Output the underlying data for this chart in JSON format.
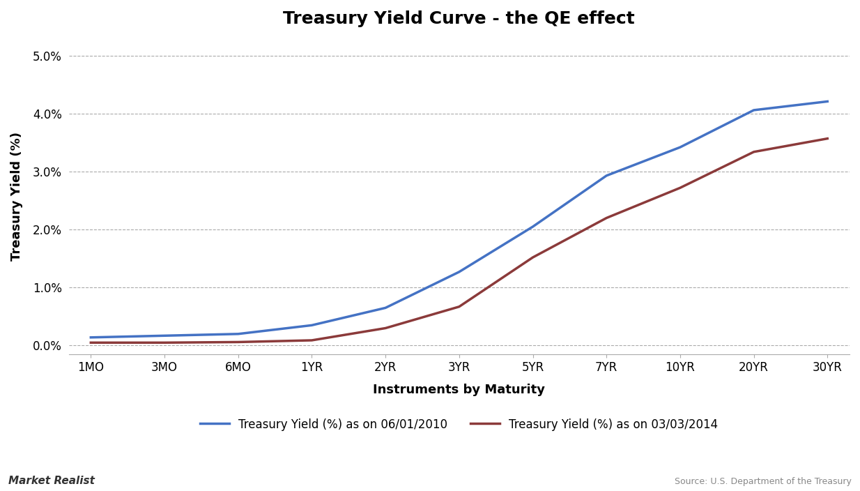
{
  "title": "Treasury Yield Curve - the QE effect",
  "xlabel": "Instruments by Maturity",
  "ylabel": "Treasury Yield (%)",
  "categories": [
    "1MO",
    "3MO",
    "6MO",
    "1YR",
    "2YR",
    "3YR",
    "5YR",
    "7YR",
    "10YR",
    "20YR",
    "30YR"
  ],
  "series_2010": [
    0.14,
    0.17,
    0.2,
    0.35,
    0.65,
    1.27,
    2.05,
    2.93,
    3.42,
    4.06,
    4.21
  ],
  "series_2014": [
    0.05,
    0.05,
    0.06,
    0.09,
    0.3,
    0.67,
    1.52,
    2.2,
    2.72,
    3.34,
    3.57
  ],
  "color_2010": "#4472C4",
  "color_2014": "#8B3A3A",
  "legend_2010": "Treasury Yield (%) as on 06/01/2010",
  "legend_2014": "Treasury Yield (%) as on 03/03/2014",
  "ytick_vals": [
    0.0,
    1.0,
    2.0,
    3.0,
    4.0,
    5.0
  ],
  "ytick_labels": [
    "0.0%",
    "1.0%",
    "2.0%",
    "3.0%",
    "4.0%",
    "5.0%"
  ],
  "ylim_min": -0.15,
  "ylim_max": 5.3,
  "background_color": "#FFFFFF",
  "grid_color": "#AAAAAA",
  "watermark": "Market Realist",
  "source_text": "Source: U.S. Department of the Treasury",
  "title_fontsize": 18,
  "axis_label_fontsize": 13,
  "tick_fontsize": 12,
  "legend_fontsize": 12
}
